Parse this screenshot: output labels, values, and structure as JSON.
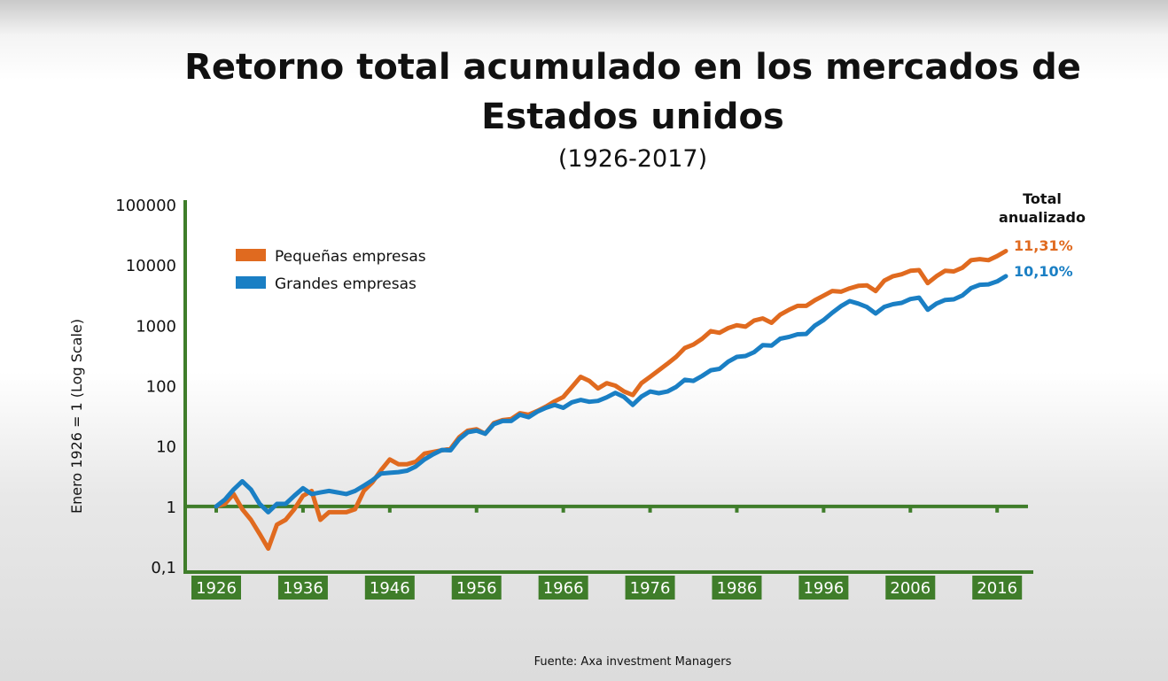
{
  "chart_data": {
    "type": "line",
    "title_lines": [
      "Retorno total acumulado en los mercados de",
      "Estados unidos"
    ],
    "subtitle": "(1926-2017)",
    "ylabel": "Enero 1926 = 1 (Log Scale)",
    "xlabel": "",
    "y_scale": "log",
    "ylim": [
      0.1,
      100000
    ],
    "xlim": [
      1926,
      2017
    ],
    "y_ticks": [
      {
        "value": 100000,
        "label": "100000"
      },
      {
        "value": 10000,
        "label": "10000"
      },
      {
        "value": 1000,
        "label": "1000"
      },
      {
        "value": 100,
        "label": "100"
      },
      {
        "value": 10,
        "label": "10"
      },
      {
        "value": 1,
        "label": "1"
      },
      {
        "value": 0.1,
        "label": "0,1"
      }
    ],
    "x_ticks": [
      {
        "value": 1926,
        "label": "1926"
      },
      {
        "value": 1936,
        "label": "1936"
      },
      {
        "value": 1946,
        "label": "1946"
      },
      {
        "value": 1956,
        "label": "1956"
      },
      {
        "value": 1966,
        "label": "1966"
      },
      {
        "value": 1976,
        "label": "1976"
      },
      {
        "value": 1986,
        "label": "1986"
      },
      {
        "value": 1996,
        "label": "1996"
      },
      {
        "value": 2006,
        "label": "2006"
      },
      {
        "value": 2016,
        "label": "2016"
      }
    ],
    "legend_position": "top-left",
    "annotation_header": "Total anualizado",
    "series": [
      {
        "name": "Pequeñas empresas",
        "color": "#e06a1f",
        "annualized": "11,31%",
        "points": [
          [
            1926,
            1.0
          ],
          [
            1927,
            1.1
          ],
          [
            1928,
            1.6
          ],
          [
            1929,
            0.9
          ],
          [
            1930,
            0.6
          ],
          [
            1931,
            0.35
          ],
          [
            1932,
            0.2
          ],
          [
            1933,
            0.5
          ],
          [
            1934,
            0.6
          ],
          [
            1935,
            0.9
          ],
          [
            1936,
            1.5
          ],
          [
            1937,
            1.8
          ],
          [
            1938,
            0.6
          ],
          [
            1939,
            0.8
          ],
          [
            1940,
            0.8
          ],
          [
            1941,
            0.8
          ],
          [
            1942,
            0.9
          ],
          [
            1943,
            1.8
          ],
          [
            1944,
            2.5
          ],
          [
            1945,
            4.0
          ],
          [
            1946,
            6.0
          ],
          [
            1947,
            5.0
          ],
          [
            1948,
            5.0
          ],
          [
            1949,
            5.5
          ],
          [
            1950,
            7.5
          ],
          [
            1951,
            8.0
          ],
          [
            1952,
            8.5
          ],
          [
            1953,
            9.0
          ],
          [
            1954,
            14
          ],
          [
            1955,
            18
          ],
          [
            1956,
            19
          ],
          [
            1957,
            16
          ],
          [
            1958,
            24
          ],
          [
            1959,
            27
          ],
          [
            1960,
            28
          ],
          [
            1961,
            35
          ],
          [
            1962,
            33
          ],
          [
            1963,
            38
          ],
          [
            1964,
            45
          ],
          [
            1965,
            55
          ],
          [
            1966,
            65
          ],
          [
            1967,
            95
          ],
          [
            1968,
            140
          ],
          [
            1969,
            120
          ],
          [
            1970,
            90
          ],
          [
            1971,
            110
          ],
          [
            1972,
            100
          ],
          [
            1973,
            80
          ],
          [
            1974,
            70
          ],
          [
            1975,
            110
          ],
          [
            1976,
            140
          ],
          [
            1977,
            180
          ],
          [
            1978,
            230
          ],
          [
            1979,
            300
          ],
          [
            1980,
            420
          ],
          [
            1981,
            480
          ],
          [
            1982,
            600
          ],
          [
            1983,
            800
          ],
          [
            1984,
            750
          ],
          [
            1985,
            900
          ],
          [
            1986,
            1000
          ],
          [
            1987,
            950
          ],
          [
            1988,
            1200
          ],
          [
            1989,
            1300
          ],
          [
            1990,
            1100
          ],
          [
            1991,
            1500
          ],
          [
            1992,
            1800
          ],
          [
            1993,
            2100
          ],
          [
            1994,
            2100
          ],
          [
            1995,
            2600
          ],
          [
            1996,
            3100
          ],
          [
            1997,
            3700
          ],
          [
            1998,
            3600
          ],
          [
            1999,
            4100
          ],
          [
            2000,
            4500
          ],
          [
            2001,
            4600
          ],
          [
            2002,
            3700
          ],
          [
            2003,
            5500
          ],
          [
            2004,
            6500
          ],
          [
            2005,
            7000
          ],
          [
            2006,
            8000
          ],
          [
            2007,
            8200
          ],
          [
            2008,
            5000
          ],
          [
            2009,
            6500
          ],
          [
            2010,
            8000
          ],
          [
            2011,
            7800
          ],
          [
            2012,
            9000
          ],
          [
            2013,
            12000
          ],
          [
            2014,
            12500
          ],
          [
            2015,
            12000
          ],
          [
            2016,
            14000
          ],
          [
            2017,
            17000
          ]
        ]
      },
      {
        "name": "Grandes empresas",
        "color": "#1a7fc4",
        "annualized": "10,10%",
        "points": [
          [
            1926,
            1.0
          ],
          [
            1927,
            1.3
          ],
          [
            1928,
            1.9
          ],
          [
            1929,
            2.6
          ],
          [
            1930,
            1.9
          ],
          [
            1931,
            1.1
          ],
          [
            1932,
            0.8
          ],
          [
            1933,
            1.1
          ],
          [
            1934,
            1.1
          ],
          [
            1935,
            1.5
          ],
          [
            1936,
            2.0
          ],
          [
            1937,
            1.6
          ],
          [
            1938,
            1.7
          ],
          [
            1939,
            1.8
          ],
          [
            1940,
            1.7
          ],
          [
            1941,
            1.6
          ],
          [
            1942,
            1.8
          ],
          [
            1943,
            2.2
          ],
          [
            1944,
            2.7
          ],
          [
            1945,
            3.5
          ],
          [
            1946,
            3.6
          ],
          [
            1947,
            3.7
          ],
          [
            1948,
            3.9
          ],
          [
            1949,
            4.6
          ],
          [
            1950,
            6.0
          ],
          [
            1951,
            7.3
          ],
          [
            1952,
            8.6
          ],
          [
            1953,
            8.5
          ],
          [
            1954,
            13
          ],
          [
            1955,
            17
          ],
          [
            1956,
            18
          ],
          [
            1957,
            16
          ],
          [
            1958,
            23
          ],
          [
            1959,
            26
          ],
          [
            1960,
            26
          ],
          [
            1961,
            33
          ],
          [
            1962,
            30
          ],
          [
            1963,
            37
          ],
          [
            1964,
            43
          ],
          [
            1965,
            48
          ],
          [
            1966,
            43
          ],
          [
            1967,
            53
          ],
          [
            1968,
            58
          ],
          [
            1969,
            54
          ],
          [
            1970,
            56
          ],
          [
            1971,
            64
          ],
          [
            1972,
            76
          ],
          [
            1973,
            65
          ],
          [
            1974,
            48
          ],
          [
            1975,
            66
          ],
          [
            1976,
            80
          ],
          [
            1977,
            75
          ],
          [
            1978,
            80
          ],
          [
            1979,
            95
          ],
          [
            1980,
            125
          ],
          [
            1981,
            120
          ],
          [
            1982,
            145
          ],
          [
            1983,
            180
          ],
          [
            1984,
            190
          ],
          [
            1985,
            250
          ],
          [
            1986,
            300
          ],
          [
            1987,
            310
          ],
          [
            1988,
            360
          ],
          [
            1989,
            470
          ],
          [
            1990,
            460
          ],
          [
            1991,
            600
          ],
          [
            1992,
            640
          ],
          [
            1993,
            710
          ],
          [
            1994,
            720
          ],
          [
            1995,
            990
          ],
          [
            1996,
            1220
          ],
          [
            1997,
            1620
          ],
          [
            1998,
            2080
          ],
          [
            1999,
            2520
          ],
          [
            2000,
            2290
          ],
          [
            2001,
            2010
          ],
          [
            2002,
            1570
          ],
          [
            2003,
            2020
          ],
          [
            2004,
            2240
          ],
          [
            2005,
            2350
          ],
          [
            2006,
            2720
          ],
          [
            2007,
            2870
          ],
          [
            2008,
            1810
          ],
          [
            2009,
            2290
          ],
          [
            2010,
            2630
          ],
          [
            2011,
            2690
          ],
          [
            2012,
            3120
          ],
          [
            2013,
            4130
          ],
          [
            2014,
            4690
          ],
          [
            2015,
            4760
          ],
          [
            2016,
            5330
          ],
          [
            2017,
            6500
          ]
        ]
      }
    ]
  },
  "source": "Fuente: Axa investment Managers"
}
